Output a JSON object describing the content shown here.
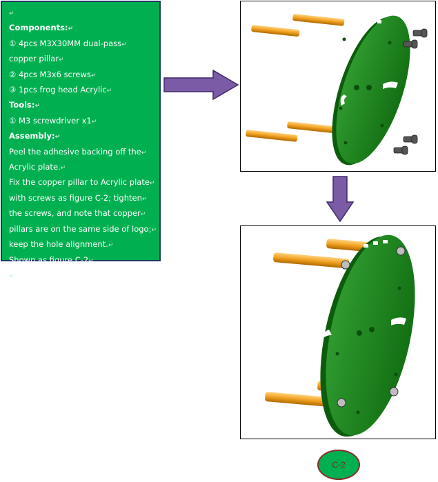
{
  "instructions": {
    "paragraph_mark": "↵",
    "lines": [
      {
        "text": "",
        "kind": "blank"
      },
      {
        "text": "Components:",
        "kind": "heading"
      },
      {
        "text": "① 4pcs M3X30MM dual-pass",
        "kind": "text"
      },
      {
        "text": "copper pillar",
        "kind": "text"
      },
      {
        "text": "② 4pcs M3x6 screws",
        "kind": "text"
      },
      {
        "text": "③ 1pcs frog head Acrylic",
        "kind": "text"
      },
      {
        "text": "Tools:",
        "kind": "heading"
      },
      {
        "text": "① M3 screwdriver x1",
        "kind": "text"
      },
      {
        "text": "Assembly:",
        "kind": "heading"
      },
      {
        "text": "Peel the adhesive backing off the",
        "kind": "text"
      },
      {
        "text": "Acrylic plate.",
        "kind": "text"
      },
      {
        "text": "Fix the copper pillar to Acrylic plate",
        "kind": "text"
      },
      {
        "text": "with screws as figure C-2;  tighten",
        "kind": "text"
      },
      {
        "text": "the screws, and note that copper",
        "kind": "text"
      },
      {
        "text": "pillars are on the same side of logo;",
        "kind": "text"
      },
      {
        "text": "keep the hole alignment.",
        "kind": "text"
      },
      {
        "text": "Shown as figure C-2",
        "kind": "text"
      },
      {
        "text": "",
        "kind": "blank"
      }
    ]
  },
  "figure_label": "C-2",
  "colors": {
    "panel_green": "#00b050",
    "arrow_purple": "#7b5ba6",
    "plate_green": "#1e8a1e",
    "pillar_gold": "#f0a020"
  },
  "icons": [
    "arrow-right-icon",
    "arrow-down-icon"
  ]
}
